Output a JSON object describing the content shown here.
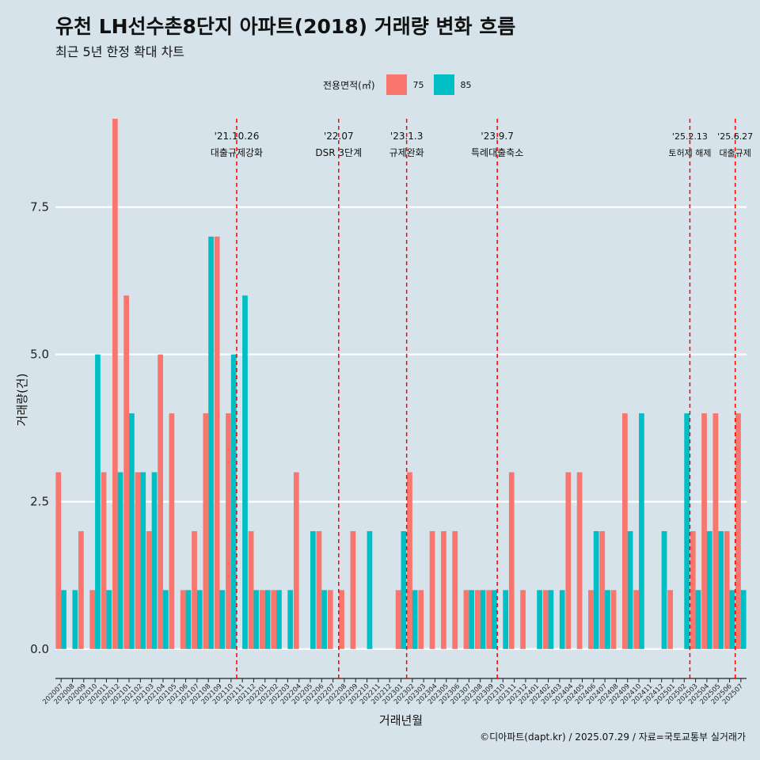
{
  "chart_data": {
    "type": "bar",
    "title": "유천 LH선수촌8단지 아파트(2018) 거래량 변화 흐름",
    "subtitle": "최근 5년 한정 확대 차트",
    "xlabel": "거래년월",
    "ylabel": "거래량(건)",
    "ylim": [
      -0.5,
      9.0
    ],
    "yticks": [
      0.0,
      2.5,
      5.0,
      7.5
    ],
    "ytick_labels": [
      "0.0",
      "2.5",
      "5.0",
      "7.5"
    ],
    "legend": {
      "title": "전용면적(㎡)",
      "position": "top",
      "entries": [
        {
          "name": "75",
          "color": "#F8766D"
        },
        {
          "name": "85",
          "color": "#00BFC4"
        }
      ]
    },
    "categories": [
      "202007",
      "202008",
      "202009",
      "202010",
      "202011",
      "202012",
      "202101",
      "202102",
      "202103",
      "202104",
      "202105",
      "202106",
      "202107",
      "202108",
      "202109",
      "202110",
      "202111",
      "202112",
      "202201",
      "202202",
      "202203",
      "202204",
      "202205",
      "202206",
      "202207",
      "202208",
      "202209",
      "202210",
      "202211",
      "202212",
      "202301",
      "202302",
      "202303",
      "202304",
      "202305",
      "202306",
      "202307",
      "202308",
      "202309",
      "202310",
      "202311",
      "202312",
      "202401",
      "202402",
      "202403",
      "202404",
      "202405",
      "202406",
      "202407",
      "202408",
      "202409",
      "202410",
      "202411",
      "202412",
      "202501",
      "202502",
      "202503",
      "202504",
      "202505",
      "202506",
      "202507"
    ],
    "series": [
      {
        "name": "75",
        "color": "#F8766D",
        "values": [
          3,
          0,
          2,
          1,
          3,
          9,
          6,
          3,
          2,
          5,
          4,
          1,
          2,
          4,
          7,
          4,
          0,
          2,
          1,
          1,
          0,
          3,
          0,
          2,
          1,
          1,
          2,
          0,
          0,
          0,
          1,
          3,
          1,
          2,
          2,
          2,
          1,
          1,
          1,
          0,
          3,
          1,
          0,
          1,
          0,
          3,
          3,
          1,
          2,
          1,
          4,
          1,
          0,
          0,
          1,
          0,
          2,
          4,
          4,
          2,
          4
        ]
      },
      {
        "name": "85",
        "color": "#00BFC4",
        "values": [
          1,
          1,
          0,
          5,
          1,
          3,
          4,
          3,
          3,
          1,
          0,
          1,
          1,
          7,
          1,
          5,
          6,
          1,
          1,
          1,
          1,
          0,
          2,
          1,
          0,
          0,
          0,
          2,
          0,
          0,
          2,
          1,
          0,
          0,
          0,
          0,
          1,
          1,
          1,
          1,
          0,
          0,
          1,
          1,
          1,
          0,
          0,
          2,
          1,
          0,
          2,
          4,
          0,
          2,
          0,
          4,
          1,
          2,
          2,
          1,
          1
        ]
      }
    ],
    "events": [
      {
        "date": "'21.10.26",
        "label": "대출규제강화",
        "after": "202110"
      },
      {
        "date": "'22.07",
        "label": "DSR 3단계",
        "after": "202207"
      },
      {
        "date": "'23.1.3",
        "label": "규제완화",
        "after": "202301"
      },
      {
        "date": "'23.9.7",
        "label": "특례대출축소",
        "after": "202309"
      },
      {
        "date": "'25.2.13",
        "label": "토허제 해제",
        "after": "202502"
      },
      {
        "date": "'25.6.27",
        "label": "대출규제",
        "after": "202506"
      }
    ],
    "event_color": "#FF0000",
    "grid": true,
    "caption": "©디아파트(dapt.kr) / 2025.07.29 / 자료=국토교통부 실거래가"
  }
}
